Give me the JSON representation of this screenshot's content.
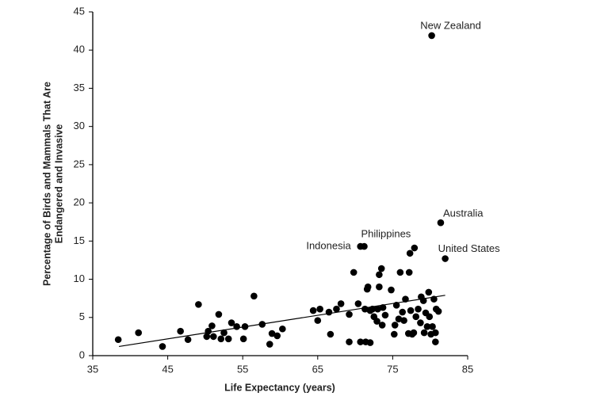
{
  "chart_data": {
    "type": "scatter",
    "xlabel": "Life Expectancy (years)",
    "ylabel": [
      "Percentage of Birds and Mammals That Are",
      "Endangered and Invasive"
    ],
    "xlim": [
      35,
      85
    ],
    "xticks": [
      35,
      45,
      55,
      65,
      75,
      85
    ],
    "ylim": [
      0,
      45
    ],
    "yticks": [
      0,
      5,
      10,
      15,
      20,
      25,
      30,
      35,
      40,
      45
    ],
    "color": "#000000",
    "x": [
      38.4,
      41.1,
      44.3,
      46.7,
      47.7,
      49.1,
      50.2,
      50.4,
      50.9,
      51.1,
      51.8,
      52.1,
      52.5,
      53.1,
      53.5,
      54.2,
      55.1,
      55.3,
      56.5,
      57.6,
      58.6,
      58.9,
      59.6,
      60.3,
      64.4,
      65.0,
      65.3,
      66.5,
      66.7,
      67.5,
      68.1,
      69.2,
      69.2,
      69.8,
      70.4,
      70.7,
      71.2,
      70.7,
      71.3,
      71.4,
      71.6,
      72.0,
      72.0,
      71.7,
      72.3,
      72.5,
      72.9,
      73.0,
      73.2,
      73.2,
      73.5,
      73.6,
      73.7,
      74.0,
      74.8,
      75.2,
      75.3,
      75.5,
      75.8,
      76.0,
      76.3,
      76.5,
      76.7,
      77.1,
      77.2,
      77.3,
      77.9,
      77.4,
      77.6,
      77.8,
      78.1,
      78.4,
      78.7,
      78.8,
      79.1,
      79.2,
      79.4,
      79.6,
      79.8,
      79.9,
      80.1,
      80.3,
      80.5,
      80.7,
      80.7,
      80.8,
      81.1,
      80.2,
      81.4,
      82.0
    ],
    "values": [
      2.1,
      3.0,
      1.2,
      3.2,
      2.1,
      6.7,
      2.5,
      3.2,
      3.9,
      2.5,
      5.4,
      2.2,
      3.0,
      2.2,
      4.3,
      3.8,
      2.2,
      3.8,
      7.8,
      4.1,
      1.5,
      2.9,
      2.6,
      3.5,
      5.9,
      4.6,
      6.1,
      5.7,
      2.8,
      6.1,
      6.8,
      5.4,
      1.8,
      10.9,
      6.8,
      14.3,
      14.3,
      1.8,
      6.1,
      1.8,
      8.7,
      1.7,
      5.9,
      9.0,
      6.1,
      5.1,
      4.5,
      6.1,
      10.6,
      9.0,
      11.4,
      4.0,
      6.3,
      5.3,
      8.6,
      2.8,
      4.0,
      6.6,
      4.8,
      10.9,
      5.7,
      4.6,
      7.4,
      2.9,
      10.9,
      13.4,
      14.1,
      5.9,
      2.8,
      3.0,
      5.1,
      6.1,
      4.3,
      7.7,
      7.2,
      3.0,
      5.6,
      3.8,
      8.3,
      5.1,
      2.8,
      3.8,
      7.4,
      3.0,
      1.8,
      6.1,
      5.8,
      41.9,
      17.4,
      12.7
    ],
    "trend_line": {
      "x": [
        38.5,
        82.0
      ],
      "values": [
        1.2,
        7.9
      ]
    },
    "annotations": [
      {
        "text": "New Zealand",
        "x": 80.2,
        "y": 41.9
      },
      {
        "text": "Australia",
        "x": 81.4,
        "y": 17.4
      },
      {
        "text": "Indonesia",
        "x": 70.7,
        "y": 14.3
      },
      {
        "text": "Philippines",
        "x": 71.2,
        "y": 14.3
      },
      {
        "text": "United States",
        "x": 82.0,
        "y": 12.7
      }
    ]
  }
}
